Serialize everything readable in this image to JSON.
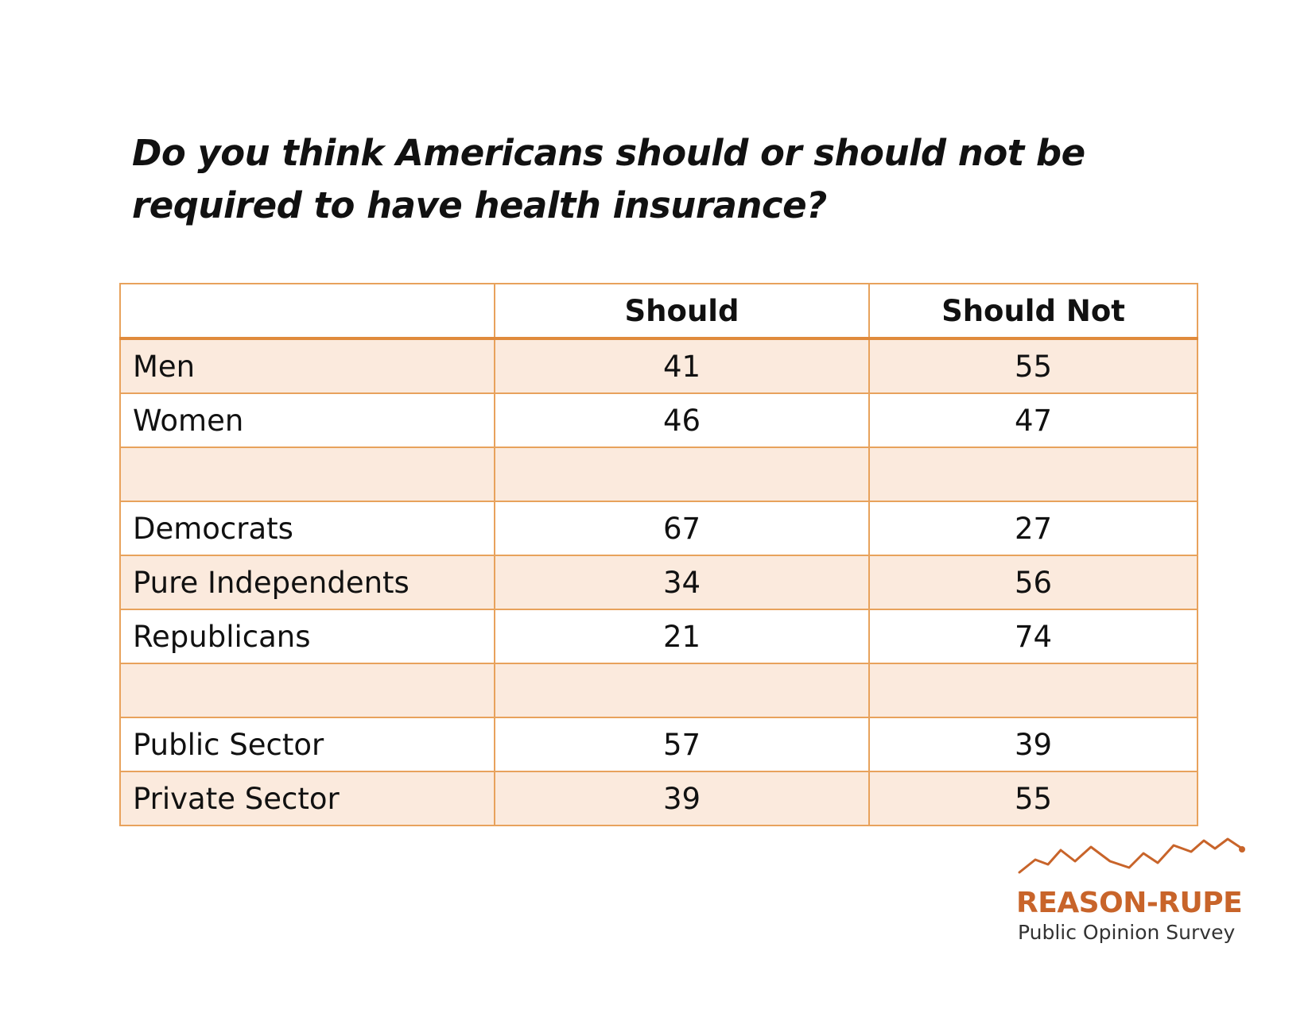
{
  "question": "Do you think Americans should or should not be required to have health insurance?",
  "chart_data": {
    "type": "table",
    "title": "Do you think Americans should or should not be required to have health insurance?",
    "columns": [
      "",
      "Should",
      "Should Not"
    ],
    "rows": [
      {
        "label": "Men",
        "should": "41",
        "should_not": "55"
      },
      {
        "label": "Women",
        "should": "46",
        "should_not": "47"
      },
      {
        "label": "",
        "should": "",
        "should_not": ""
      },
      {
        "label": "Democrats",
        "should": "67",
        "should_not": "27"
      },
      {
        "label": "Pure Independents",
        "should": "34",
        "should_not": "56"
      },
      {
        "label": "Republicans",
        "should": "21",
        "should_not": "74"
      },
      {
        "label": "",
        "should": "",
        "should_not": ""
      },
      {
        "label": "Public Sector",
        "should": "57",
        "should_not": "39"
      },
      {
        "label": "Private Sector",
        "should": "39",
        "should_not": "55"
      }
    ]
  },
  "logo": {
    "name": "REASON-RUPE",
    "subtitle": "Public Opinion Survey",
    "color": "#c8642a"
  },
  "colors": {
    "border": "#e8a25c",
    "shaded_row": "#fbeadd",
    "header_rule": "#e08a3c"
  }
}
